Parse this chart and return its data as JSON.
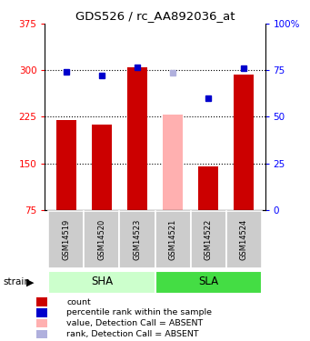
{
  "title": "GDS526 / rc_AA892036_at",
  "samples": [
    "GSM14519",
    "GSM14520",
    "GSM14523",
    "GSM14521",
    "GSM14522",
    "GSM14524"
  ],
  "bar_values": [
    220,
    213,
    305,
    228,
    145,
    293
  ],
  "bar_absent": [
    false,
    false,
    false,
    true,
    false,
    false
  ],
  "rank_values": [
    74,
    72,
    76.5,
    73.5,
    60,
    76
  ],
  "rank_absent": [
    false,
    false,
    false,
    true,
    false,
    false
  ],
  "ylim_left": [
    75,
    375
  ],
  "ylim_right": [
    0,
    100
  ],
  "yticks_left": [
    75,
    150,
    225,
    300,
    375
  ],
  "yticks_right": [
    0,
    25,
    50,
    75,
    100
  ],
  "ytick_right_labels": [
    "0",
    "25",
    "50",
    "75",
    "100%"
  ],
  "hlines": [
    150,
    225,
    300
  ],
  "bar_color_present": "#cc0000",
  "bar_color_absent": "#ffb0b0",
  "rank_color_present": "#0000cc",
  "rank_color_absent": "#b0b0dd",
  "sha_color": "#ccffcc",
  "sla_color": "#44dd44",
  "sample_bg_color": "#cccccc",
  "legend_labels": [
    "count",
    "percentile rank within the sample",
    "value, Detection Call = ABSENT",
    "rank, Detection Call = ABSENT"
  ],
  "legend_colors": [
    "#cc0000",
    "#0000cc",
    "#ffb0b0",
    "#b0b0dd"
  ]
}
